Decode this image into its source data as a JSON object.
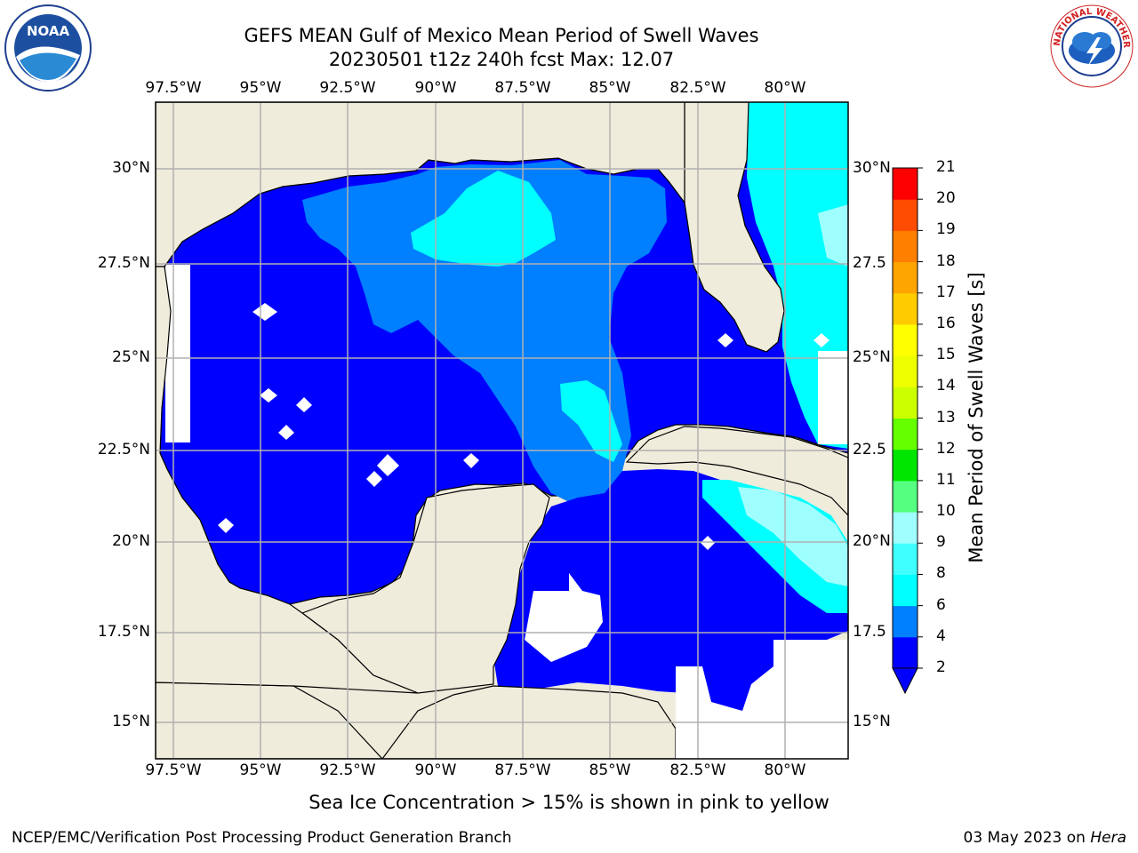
{
  "title": {
    "line1": "GEFS MEAN Gulf of Mexico Mean Period of Swell Waves",
    "line2": "20230501 t12z 240h fcst   Max: 12.07"
  },
  "map": {
    "lon_labels": [
      "97.5°W",
      "95°W",
      "92.5°W",
      "90°W",
      "87.5°W",
      "85°W",
      "82.5°W",
      "80°W"
    ],
    "lat_labels_left": [
      "30°N",
      "27.5°N",
      "25°N",
      "22.5°N",
      "20°N",
      "17.5°N",
      "15°N"
    ],
    "lat_labels_right": [
      "30°N",
      "27.5",
      "25°N",
      "22.5",
      "20°N",
      "17.5",
      "15°N"
    ],
    "extent": {
      "lon_min": -98,
      "lon_max": -78.3,
      "lat_min": 14,
      "lat_max": 31.8
    },
    "land_color": "#efecdc",
    "grid_color": "#b0b0b0"
  },
  "colorbar": {
    "title": "Mean Period of Swell Waves [s]",
    "ticks": [
      "21",
      "20",
      "19",
      "18",
      "17",
      "16",
      "15",
      "14",
      "13",
      "12",
      "11",
      "10",
      "9",
      "8",
      "6",
      "4",
      "2"
    ],
    "levels": [
      {
        "lo": 2,
        "hi": 4,
        "color": "#0000ff"
      },
      {
        "lo": 4,
        "hi": 6,
        "color": "#007fff"
      },
      {
        "lo": 6,
        "hi": 8,
        "color": "#00ffff"
      },
      {
        "lo": 8,
        "hi": 9,
        "color": "#3fffff"
      },
      {
        "lo": 9,
        "hi": 10,
        "color": "#9fffff"
      },
      {
        "lo": 10,
        "hi": 11,
        "color": "#55ff80"
      },
      {
        "lo": 11,
        "hi": 12,
        "color": "#00e600"
      },
      {
        "lo": 12,
        "hi": 13,
        "color": "#66ff00"
      },
      {
        "lo": 13,
        "hi": 14,
        "color": "#ccff00"
      },
      {
        "lo": 14,
        "hi": 15,
        "color": "#eeff00"
      },
      {
        "lo": 15,
        "hi": 16,
        "color": "#ffff00"
      },
      {
        "lo": 16,
        "hi": 17,
        "color": "#ffcc00"
      },
      {
        "lo": 17,
        "hi": 18,
        "color": "#ffa500"
      },
      {
        "lo": 18,
        "hi": 19,
        "color": "#ff7f00"
      },
      {
        "lo": 19,
        "hi": 20,
        "color": "#ff4c00"
      },
      {
        "lo": 20,
        "hi": 21,
        "color": "#ff0000"
      }
    ]
  },
  "footer": {
    "note": "Sea Ice Concentration > 15% is shown in pink to yellow",
    "left": "NCEP/EMC/Verification Post Processing Product Generation Branch",
    "date": "03 May 2023 on ",
    "host": "Hera"
  },
  "logos": {
    "noaa_text": "NOAA",
    "nws_text": "NATIONAL WEATHER SERVICE"
  }
}
